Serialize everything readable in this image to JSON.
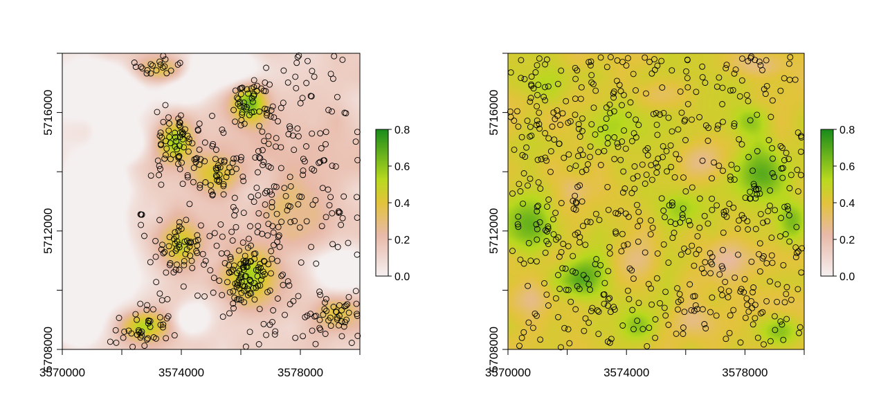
{
  "chart_data": [
    {
      "type": "heatmap",
      "title": "",
      "xlabel": "",
      "ylabel": "",
      "xlim": [
        3570000,
        3580000
      ],
      "ylim": [
        5708000,
        5718000
      ],
      "x_ticks": [
        {
          "value": 3570000,
          "label": "3570000"
        },
        {
          "value": 3572000,
          "label": ""
        },
        {
          "value": 3574000,
          "label": "3574000"
        },
        {
          "value": 3576000,
          "label": ""
        },
        {
          "value": 3578000,
          "label": "3578000"
        },
        {
          "value": 3580000,
          "label": ""
        }
      ],
      "y_ticks": [
        {
          "value": 5708000,
          "label": "5708000"
        },
        {
          "value": 5710000,
          "label": ""
        },
        {
          "value": 5712000,
          "label": "5712000"
        },
        {
          "value": 5714000,
          "label": ""
        },
        {
          "value": 5716000,
          "label": "5716000"
        },
        {
          "value": 5718000,
          "label": ""
        }
      ],
      "legend": {
        "placement": "right",
        "min": 0.0,
        "max": 0.8,
        "ticks": [
          {
            "value": 0.0,
            "label": "0.0"
          },
          {
            "value": 0.2,
            "label": "0.2"
          },
          {
            "value": 0.4,
            "label": "0.4"
          },
          {
            "value": 0.6,
            "label": "0.6"
          },
          {
            "value": 0.8,
            "label": "0.8"
          }
        ]
      },
      "colors": {
        "low": "#f5f0f0",
        "pink": "#e8b9a8",
        "mid": "#e3c33c",
        "yellowgreen": "#b8d91e",
        "high": "#1a8c1a"
      },
      "point_marker": "open circle",
      "surface_regions": [
        {
          "x": 3571400,
          "y": 5716700,
          "sx": 1300,
          "sy": 900,
          "value": -0.5
        },
        {
          "x": 3571000,
          "y": 5713300,
          "sx": 1100,
          "sy": 1300,
          "value": -0.5
        },
        {
          "x": 3571000,
          "y": 5710800,
          "sx": 1200,
          "sy": 1300,
          "value": -0.5
        },
        {
          "x": 3570500,
          "y": 5709000,
          "sx": 700,
          "sy": 800,
          "value": -0.4
        },
        {
          "x": 3572000,
          "y": 5715000,
          "sx": 700,
          "sy": 600,
          "value": -0.3
        },
        {
          "x": 3574300,
          "y": 5709000,
          "sx": 600,
          "sy": 500,
          "value": -0.3
        },
        {
          "x": 3575300,
          "y": 5717500,
          "sx": 1200,
          "sy": 700,
          "value": -0.35
        },
        {
          "x": 3574000,
          "y": 5716800,
          "sx": 800,
          "sy": 600,
          "value": -0.3
        },
        {
          "x": 3579300,
          "y": 5710600,
          "sx": 900,
          "sy": 800,
          "value": -0.3
        },
        {
          "x": 3577800,
          "y": 5715000,
          "sx": 1500,
          "sy": 2000,
          "value": 0.1
        },
        {
          "x": 3578500,
          "y": 5711800,
          "sx": 1200,
          "sy": 1200,
          "value": 0.1
        },
        {
          "x": 3573800,
          "y": 5715000,
          "sx": 600,
          "sy": 700,
          "value": 0.4
        },
        {
          "x": 3576300,
          "y": 5716300,
          "sx": 600,
          "sy": 700,
          "value": 0.5
        },
        {
          "x": 3575200,
          "y": 5713900,
          "sx": 800,
          "sy": 700,
          "value": 0.35
        },
        {
          "x": 3574000,
          "y": 5711500,
          "sx": 700,
          "sy": 800,
          "value": 0.35
        },
        {
          "x": 3576300,
          "y": 5710500,
          "sx": 900,
          "sy": 900,
          "value": 0.45
        },
        {
          "x": 3572800,
          "y": 5708800,
          "sx": 800,
          "sy": 500,
          "value": 0.4
        },
        {
          "x": 3573300,
          "y": 5717400,
          "sx": 1000,
          "sy": 500,
          "value": 0.35
        },
        {
          "x": 3579200,
          "y": 5709300,
          "sx": 700,
          "sy": 600,
          "value": 0.3
        },
        {
          "x": 3577400,
          "y": 5712800,
          "sx": 700,
          "sy": 700,
          "value": 0.15
        }
      ]
    },
    {
      "type": "heatmap",
      "title": "",
      "xlabel": "",
      "ylabel": "",
      "xlim": [
        3570000,
        3580000
      ],
      "ylim": [
        5708000,
        5718000
      ],
      "x_ticks": [
        {
          "value": 3570000,
          "label": "3570000"
        },
        {
          "value": 3572000,
          "label": ""
        },
        {
          "value": 3574000,
          "label": "3574000"
        },
        {
          "value": 3576000,
          "label": ""
        },
        {
          "value": 3578000,
          "label": "3578000"
        },
        {
          "value": 3580000,
          "label": ""
        }
      ],
      "y_ticks": [
        {
          "value": 5708000,
          "label": "5708000"
        },
        {
          "value": 5710000,
          "label": ""
        },
        {
          "value": 5712000,
          "label": "5712000"
        },
        {
          "value": 5714000,
          "label": ""
        },
        {
          "value": 5716000,
          "label": "5716000"
        },
        {
          "value": 5718000,
          "label": ""
        }
      ],
      "legend": {
        "placement": "right",
        "min": 0.0,
        "max": 0.8,
        "ticks": [
          {
            "value": 0.0,
            "label": "0.0"
          },
          {
            "value": 0.2,
            "label": "0.2"
          },
          {
            "value": 0.4,
            "label": "0.4"
          },
          {
            "value": 0.6,
            "label": "0.6"
          },
          {
            "value": 0.8,
            "label": "0.8"
          }
        ]
      },
      "colors": {
        "low": "#f5f0f0",
        "pink": "#e8b9a8",
        "mid": "#e3c33c",
        "yellowgreen": "#b8d91e",
        "high": "#1a8c1a"
      },
      "point_marker": "open circle",
      "surface_regions": [
        {
          "x": 3578600,
          "y": 5713900,
          "sx": 900,
          "sy": 900,
          "value": 0.3
        },
        {
          "x": 3570800,
          "y": 5712300,
          "sx": 800,
          "sy": 900,
          "value": 0.25
        },
        {
          "x": 3572600,
          "y": 5710500,
          "sx": 800,
          "sy": 800,
          "value": 0.25
        },
        {
          "x": 3575800,
          "y": 5712700,
          "sx": 800,
          "sy": 600,
          "value": 0.2
        },
        {
          "x": 3579600,
          "y": 5712300,
          "sx": 500,
          "sy": 700,
          "value": 0.22
        },
        {
          "x": 3579200,
          "y": 5708600,
          "sx": 700,
          "sy": 500,
          "value": 0.2
        },
        {
          "x": 3574400,
          "y": 5708800,
          "sx": 600,
          "sy": 500,
          "value": 0.2
        },
        {
          "x": 3573400,
          "y": 5715600,
          "sx": 900,
          "sy": 700,
          "value": 0.15
        },
        {
          "x": 3571000,
          "y": 5717000,
          "sx": 800,
          "sy": 600,
          "value": 0.12
        },
        {
          "x": 3578200,
          "y": 5715700,
          "sx": 600,
          "sy": 500,
          "value": 0.18
        },
        {
          "x": 3577300,
          "y": 5711000,
          "sx": 700,
          "sy": 700,
          "value": -0.15
        },
        {
          "x": 3575300,
          "y": 5716600,
          "sx": 800,
          "sy": 500,
          "value": -0.12
        },
        {
          "x": 3574200,
          "y": 5711000,
          "sx": 700,
          "sy": 600,
          "value": -0.12
        },
        {
          "x": 3572200,
          "y": 5713400,
          "sx": 500,
          "sy": 500,
          "value": -0.12
        },
        {
          "x": 3576500,
          "y": 5714400,
          "sx": 700,
          "sy": 600,
          "value": -0.15
        },
        {
          "x": 3570800,
          "y": 5709700,
          "sx": 600,
          "sy": 500,
          "value": -0.1
        },
        {
          "x": 3576300,
          "y": 5709000,
          "sx": 700,
          "sy": 500,
          "value": -0.1
        },
        {
          "x": 3578400,
          "y": 5717600,
          "sx": 900,
          "sy": 400,
          "value": -0.15
        }
      ]
    }
  ]
}
